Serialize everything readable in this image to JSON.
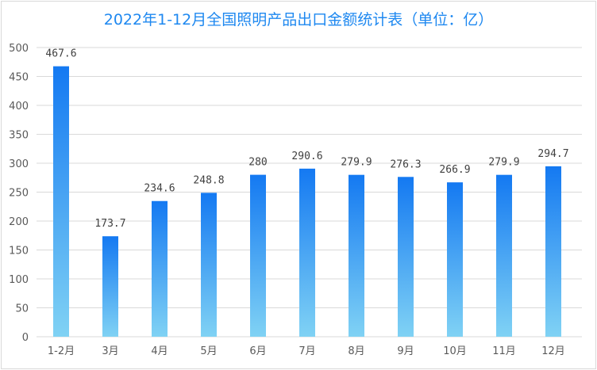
{
  "chart_data": {
    "type": "bar",
    "title": "2022年1-12月全国照明产品出口金额统计表（单位：亿）",
    "categories": [
      "1-2月",
      "3月",
      "4月",
      "5月",
      "6月",
      "7月",
      "8月",
      "9月",
      "10月",
      "11月",
      "12月"
    ],
    "values": [
      467.6,
      173.7,
      234.6,
      248.8,
      280,
      290.6,
      279.9,
      276.3,
      266.9,
      279.9,
      294.7
    ],
    "data_labels": [
      "467.6",
      "173.7",
      "234.6",
      "248.8",
      "280",
      "290.6",
      "279.9",
      "276.3",
      "266.9",
      "279.9",
      "294.7"
    ],
    "xlabel": "",
    "ylabel": "",
    "ylim": [
      0,
      500
    ],
    "yticks": [
      0,
      50,
      100,
      150,
      200,
      250,
      300,
      350,
      400,
      450,
      500
    ],
    "grid": true,
    "legend": "none",
    "colors": {
      "bar_top": "#1479f2",
      "bar_bottom": "#80d2f4",
      "title": "#1e88f0",
      "grid": "#d9d9d9"
    }
  }
}
